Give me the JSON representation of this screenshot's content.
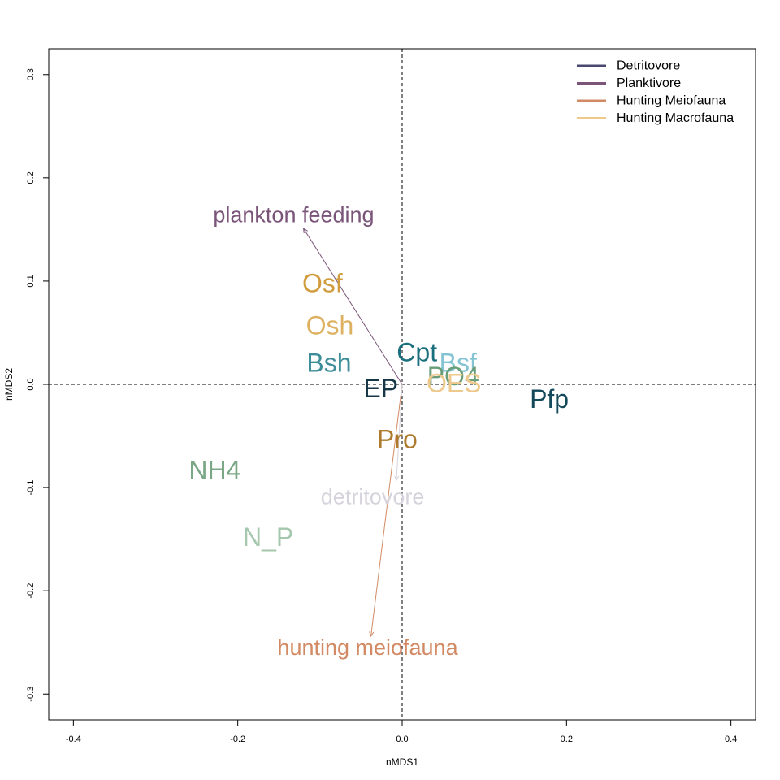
{
  "chart_data": {
    "type": "scatter",
    "title": "",
    "xlabel": "nMDS1",
    "ylabel": "nMDS2",
    "xlim": [
      -0.43,
      0.43
    ],
    "ylim": [
      -0.325,
      0.325
    ],
    "x_ticks": [
      {
        "value": -0.4,
        "label": "-0.4"
      },
      {
        "value": -0.2,
        "label": "-0.2"
      },
      {
        "value": 0.0,
        "label": "0.0"
      },
      {
        "value": 0.2,
        "label": "0.2"
      },
      {
        "value": 0.4,
        "label": "0.4"
      }
    ],
    "y_ticks": [
      {
        "value": -0.3,
        "label": "-0.3"
      },
      {
        "value": -0.2,
        "label": "-0.2"
      },
      {
        "value": -0.1,
        "label": "-0.1"
      },
      {
        "value": 0.0,
        "label": "0.0"
      },
      {
        "value": 0.1,
        "label": "0.1"
      },
      {
        "value": 0.2,
        "label": "0.2"
      },
      {
        "value": 0.3,
        "label": "0.3"
      }
    ],
    "grid": false,
    "reference_lines": [
      {
        "axis": "x",
        "value": 0,
        "style": "dashed"
      },
      {
        "axis": "y",
        "value": 0,
        "style": "dashed"
      }
    ],
    "legend_position": "top-right",
    "legend": [
      {
        "label": "Detritovore",
        "color": "#4a4870"
      },
      {
        "label": "Planktivore",
        "color": "#7a5479"
      },
      {
        "label": "Hunting Meiofauna",
        "color": "#d28a64"
      },
      {
        "label": "Hunting Macrofauna",
        "color": "#eec98e"
      }
    ],
    "points": [
      {
        "label": "Osf",
        "x": -0.097,
        "y": 0.098,
        "color": "#d09c3e"
      },
      {
        "label": "Osh",
        "x": -0.088,
        "y": 0.057,
        "color": "#ddb160"
      },
      {
        "label": "Bsh",
        "x": -0.089,
        "y": 0.021,
        "color": "#3e8e9a"
      },
      {
        "label": "Cpt",
        "x": 0.018,
        "y": 0.031,
        "color": "#1a6f7d"
      },
      {
        "label": "Bsf",
        "x": 0.068,
        "y": 0.021,
        "color": "#84c3d4"
      },
      {
        "label": "PO4",
        "x": 0.062,
        "y": 0.008,
        "color": "#6a9e78"
      },
      {
        "label": "OES",
        "x": 0.063,
        "y": 0.001,
        "color": "#eec98e"
      },
      {
        "label": "EP",
        "x": -0.026,
        "y": -0.004,
        "color": "#163645"
      },
      {
        "label": "Pfp",
        "x": 0.179,
        "y": -0.014,
        "color": "#13495a"
      },
      {
        "label": "Pro",
        "x": -0.006,
        "y": -0.053,
        "color": "#ae7b2e"
      },
      {
        "label": "NH4",
        "x": -0.228,
        "y": -0.083,
        "color": "#7aa785"
      },
      {
        "label": "N_P",
        "x": -0.163,
        "y": -0.148,
        "color": "#a5c7ae"
      }
    ],
    "vectors": [
      {
        "label": "plankton feeding",
        "x": -0.12,
        "y": 0.151,
        "color": "#7a5479",
        "label_x": -0.132,
        "label_y": 0.164
      },
      {
        "label": "hunting meiofauna",
        "x": -0.038,
        "y": -0.244,
        "color": "#d28a64",
        "label_x": -0.042,
        "label_y": -0.255
      },
      {
        "label": "detritovore",
        "x": -0.007,
        "y": -0.093,
        "color": "#d6d3dc",
        "label_x": -0.036,
        "label_y": -0.109
      }
    ]
  }
}
